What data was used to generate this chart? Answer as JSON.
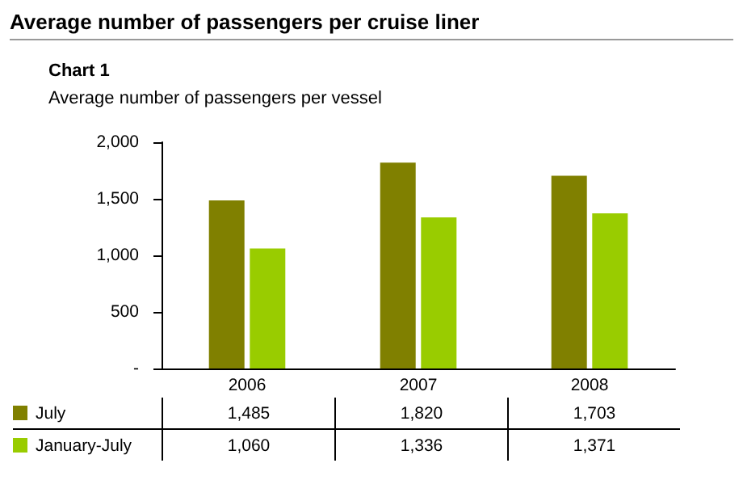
{
  "chart_data": {
    "type": "bar",
    "title": "Average number of passengers per cruise liner",
    "subtitle": "Chart 1",
    "annotations": [
      "Average number of passengers per vessel"
    ],
    "categories": [
      "2006",
      "2007",
      "2008"
    ],
    "series": [
      {
        "name": "July",
        "color": "#808000",
        "values": [
          1485,
          1820,
          1703
        ],
        "value_labels": [
          "1,485",
          "1,820",
          "1,703"
        ]
      },
      {
        "name": "January-July",
        "color": "#99cc00",
        "values": [
          1060,
          1336,
          1371
        ],
        "value_labels": [
          "1,060",
          "1,336",
          "1,371"
        ]
      }
    ],
    "ylim": [
      0,
      2000
    ],
    "yticks": [
      {
        "value": 0,
        "label": "-"
      },
      {
        "value": 500,
        "label": "500"
      },
      {
        "value": 1000,
        "label": "1,000"
      },
      {
        "value": 1500,
        "label": "1,500"
      },
      {
        "value": 2000,
        "label": "2,000"
      }
    ],
    "grid": false,
    "legend": "bottom left"
  }
}
